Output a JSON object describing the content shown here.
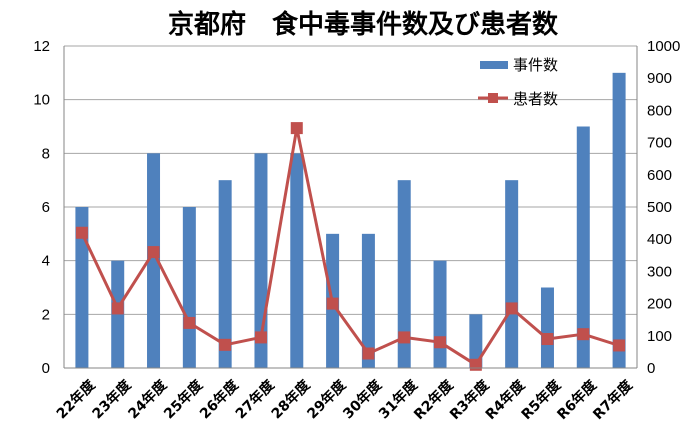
{
  "chart_data": {
    "type": "bar",
    "title": "京都府　食中毒事件数及び患者数",
    "categories": [
      "22年度",
      "23年度",
      "24年度",
      "25年度",
      "26年度",
      "27年度",
      "28年度",
      "29年度",
      "30年度",
      "31年度",
      "R2年度",
      "R3年度",
      "R4年度",
      "R5年度",
      "R6年度",
      "R7年度"
    ],
    "series": [
      {
        "name": "事件数",
        "type": "bar",
        "axis": "left",
        "color": "#4F81BD",
        "values": [
          6,
          4,
          8,
          6,
          7,
          8,
          8,
          5,
          5,
          7,
          4,
          2,
          7,
          3,
          9,
          11
        ]
      },
      {
        "name": "患者数",
        "type": "line",
        "axis": "right",
        "color": "#C0504D",
        "values": [
          420,
          185,
          360,
          140,
          72,
          95,
          745,
          200,
          45,
          95,
          80,
          10,
          185,
          90,
          105,
          70
        ]
      }
    ],
    "y_left": {
      "min": 0,
      "max": 12,
      "ticks": [
        "0",
        "2",
        "4",
        "6",
        "8",
        "10",
        "12"
      ]
    },
    "y_right": {
      "min": 0,
      "max": 1000,
      "ticks": [
        "0",
        "100",
        "200",
        "300",
        "400",
        "500",
        "600",
        "700",
        "800",
        "900",
        "1000"
      ]
    },
    "grid": true,
    "legend_position": "top-right"
  }
}
